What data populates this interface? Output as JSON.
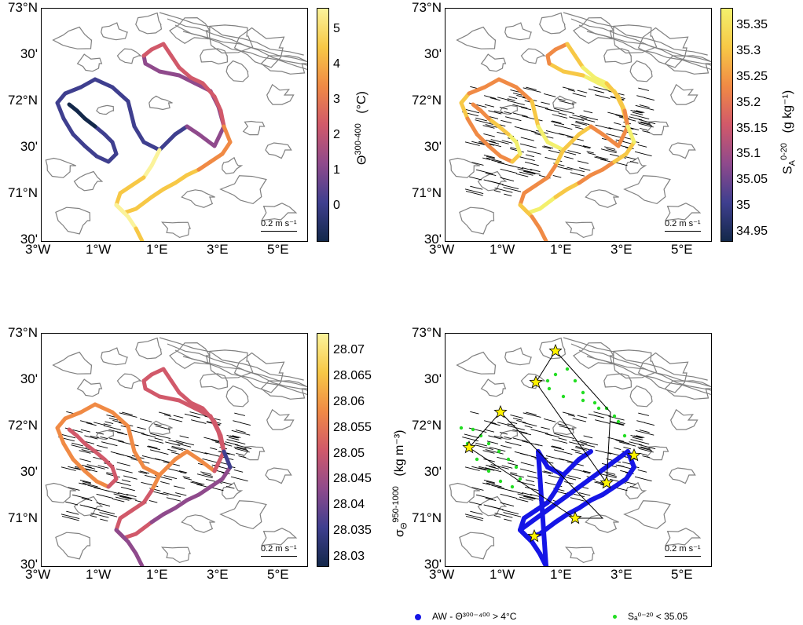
{
  "panels": [
    {
      "id": "p1",
      "colorbar_ticks": [
        "5",
        "4",
        "3",
        "2",
        "1",
        "0"
      ],
      "colorbar_title": "Θ",
      "colorbar_title_sup": "300-400",
      "colorbar_title_unit": "(°C)",
      "colormap": [
        "#fbf39b",
        "#f7c846",
        "#f08a45",
        "#d1596a",
        "#8f4a8c",
        "#3f3f8f",
        "#13284a"
      ]
    },
    {
      "id": "p2",
      "colorbar_ticks": [
        "35.35",
        "35.3",
        "35.25",
        "35.2",
        "35.15",
        "35.1",
        "35.05",
        "35",
        "34.95"
      ],
      "colorbar_title": "S",
      "colorbar_title_sup": "0-20",
      "colorbar_title_sub": "A",
      "colorbar_title_unit": "(g kg⁻¹)",
      "colormap": [
        "#f3f06d",
        "#f7c846",
        "#f08a45",
        "#d1596a",
        "#8f4a8c",
        "#3f3f8f",
        "#13284a"
      ]
    },
    {
      "id": "p3",
      "colorbar_ticks": [
        "28.07",
        "28.065",
        "28.06",
        "28.055",
        "28.05",
        "28.045",
        "28.04",
        "28.035",
        "28.03"
      ],
      "colorbar_title": "σ",
      "colorbar_title_sup": "950-1000",
      "colorbar_title_sub": "Θ",
      "colorbar_title_unit": "(kg m⁻³)",
      "colormap": [
        "#fbf39b",
        "#f7c846",
        "#f08a45",
        "#d1596a",
        "#8f4a8c",
        "#3f3f8f",
        "#13284a"
      ]
    },
    {
      "id": "p4"
    }
  ],
  "axes": {
    "lat_labels": [
      "73°N",
      "30'",
      "72°N",
      "30'",
      "71°N",
      "30'"
    ],
    "lon_labels": [
      "3°W",
      "1°W",
      "1°E",
      "3°E",
      "5°E"
    ]
  },
  "scale_bar": "0.2 m s⁻¹",
  "legend": {
    "aw_label": "AW - Θ³⁰⁰⁻⁴⁰⁰ > 4°C",
    "s_label": "Sₐ⁰⁻²⁰ < 35.05",
    "aw_color": "#1515e6",
    "s_color": "#22dd22"
  },
  "colors": {
    "contour": "#808080",
    "quiver": "#000000",
    "star_fill": "#fff200",
    "transect_line": "#000000"
  }
}
